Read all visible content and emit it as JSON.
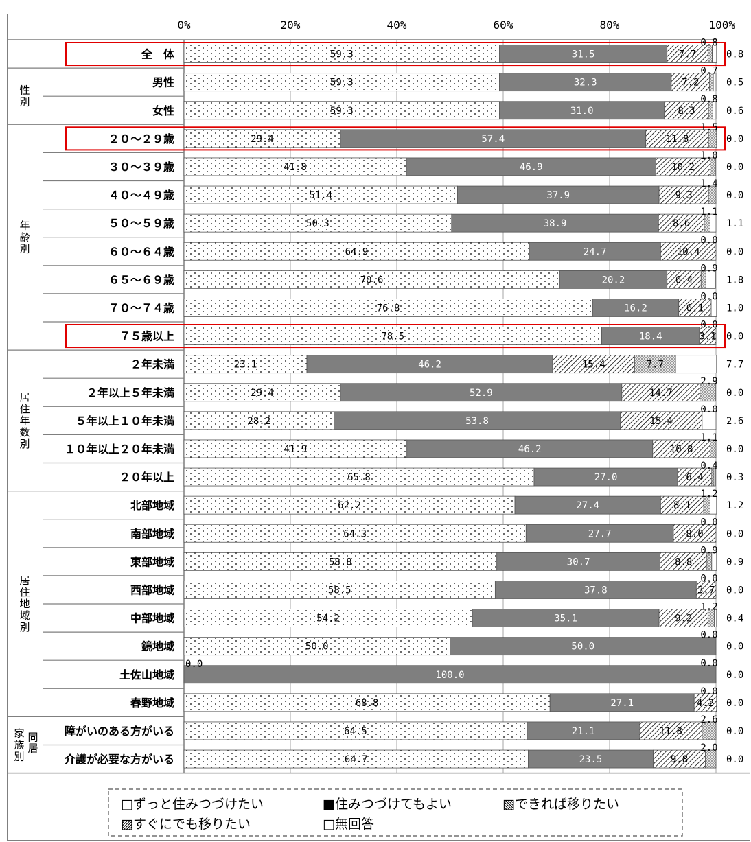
{
  "chart_data": {
    "type": "bar",
    "orientation": "horizontal-stacked-100",
    "axis": {
      "ticks": [
        "0%",
        "20%",
        "40%",
        "60%",
        "80%",
        "100%"
      ],
      "range": [
        0,
        100
      ]
    },
    "grid": true,
    "legend_placement": "bottom",
    "series": [
      {
        "name": "ずっと住みつづけたい",
        "legend_label": "□ずっと住みつづけたい",
        "pattern": "dots",
        "color": "#ffffff"
      },
      {
        "name": "住みつづけてもよい",
        "legend_label": "■住みつづけてもよい",
        "pattern": "solid",
        "color": "#7f7f7f"
      },
      {
        "name": "できれば移りたい",
        "legend_label": "▧できれば移りたい",
        "pattern": "hatch",
        "color": "#ffffff"
      },
      {
        "name": "すぐにでも移りたい",
        "legend_label": "▨すぐにでも移りたい",
        "pattern": "checker",
        "color": "#d9d9d9"
      },
      {
        "name": "無回答",
        "legend_label": "□無回答",
        "pattern": "none",
        "color": "#ffffff"
      }
    ],
    "groups": [
      {
        "label": "",
        "rows": [
          0
        ]
      },
      {
        "label": "性別",
        "rows": [
          1,
          2
        ]
      },
      {
        "label": "年齢別",
        "rows": [
          3,
          4,
          5,
          6,
          7,
          8,
          9,
          10
        ]
      },
      {
        "label": "居住年数別",
        "rows": [
          11,
          12,
          13,
          14,
          15
        ]
      },
      {
        "label": "居住地域別",
        "rows": [
          16,
          17,
          18,
          19,
          20,
          21,
          22,
          23
        ]
      },
      {
        "label": "家族別",
        "sublabel": "同居",
        "rows": [
          24,
          25
        ]
      }
    ],
    "highlighted_rows": [
      0,
      3,
      10
    ],
    "rows": [
      {
        "label": "全　体",
        "values": [
          59.3,
          31.5,
          7.7,
          0.8,
          0.8
        ]
      },
      {
        "label": "男性",
        "values": [
          59.3,
          32.3,
          7.2,
          0.7,
          0.5
        ]
      },
      {
        "label": "女性",
        "values": [
          59.3,
          31.0,
          8.3,
          0.8,
          0.6
        ]
      },
      {
        "label": "２０～２９歳",
        "values": [
          29.4,
          57.4,
          11.8,
          1.5,
          0.0
        ]
      },
      {
        "label": "３０～３９歳",
        "values": [
          41.8,
          46.9,
          10.2,
          1.0,
          0.0
        ]
      },
      {
        "label": "４０～４９歳",
        "values": [
          51.4,
          37.9,
          9.3,
          1.4,
          0.0
        ]
      },
      {
        "label": "５０～５９歳",
        "values": [
          50.3,
          38.9,
          8.6,
          1.1,
          1.1
        ]
      },
      {
        "label": "６０～６４歳",
        "values": [
          64.9,
          24.7,
          10.4,
          0.0,
          0.0
        ]
      },
      {
        "label": "６５～６９歳",
        "values": [
          70.6,
          20.2,
          6.4,
          0.9,
          1.8
        ]
      },
      {
        "label": "７０～７４歳",
        "values": [
          76.8,
          16.2,
          6.1,
          0.0,
          1.0
        ]
      },
      {
        "label": "７５歳以上",
        "values": [
          78.5,
          18.4,
          3.1,
          0.0,
          0.0
        ]
      },
      {
        "label": "２年未満",
        "values": [
          23.1,
          46.2,
          15.4,
          7.7,
          7.7
        ]
      },
      {
        "label": "２年以上５年未満",
        "values": [
          29.4,
          52.9,
          14.7,
          2.9,
          0.0
        ]
      },
      {
        "label": "５年以上１０年未満",
        "values": [
          28.2,
          53.8,
          15.4,
          0.0,
          2.6
        ]
      },
      {
        "label": "１０年以上２０年未満",
        "values": [
          41.9,
          46.2,
          10.8,
          1.1,
          0.0
        ]
      },
      {
        "label": "２０年以上",
        "values": [
          65.8,
          27.0,
          6.4,
          0.4,
          0.3
        ]
      },
      {
        "label": "北部地域",
        "values": [
          62.2,
          27.4,
          8.1,
          1.2,
          1.2
        ]
      },
      {
        "label": "南部地域",
        "values": [
          64.3,
          27.7,
          8.0,
          0.0,
          0.0
        ]
      },
      {
        "label": "東部地域",
        "values": [
          58.8,
          30.7,
          8.8,
          0.9,
          0.9
        ]
      },
      {
        "label": "西部地域",
        "values": [
          58.5,
          37.8,
          3.7,
          0.0,
          0.0
        ]
      },
      {
        "label": "中部地域",
        "values": [
          54.2,
          35.1,
          9.2,
          1.2,
          0.4
        ]
      },
      {
        "label": "鏡地域",
        "values": [
          50.0,
          50.0,
          0.0,
          0.0,
          0.0
        ]
      },
      {
        "label": "土佐山地域",
        "values": [
          0.0,
          100.0,
          0.0,
          0.0,
          0.0
        ]
      },
      {
        "label": "春野地域",
        "values": [
          68.8,
          27.1,
          4.2,
          0.0,
          0.0
        ]
      },
      {
        "label": "障がいのある方がいる",
        "values": [
          64.5,
          21.1,
          11.8,
          2.6,
          0.0
        ]
      },
      {
        "label": "介護が必要な方がいる",
        "values": [
          64.7,
          23.5,
          9.8,
          2.0,
          0.0
        ]
      }
    ]
  }
}
